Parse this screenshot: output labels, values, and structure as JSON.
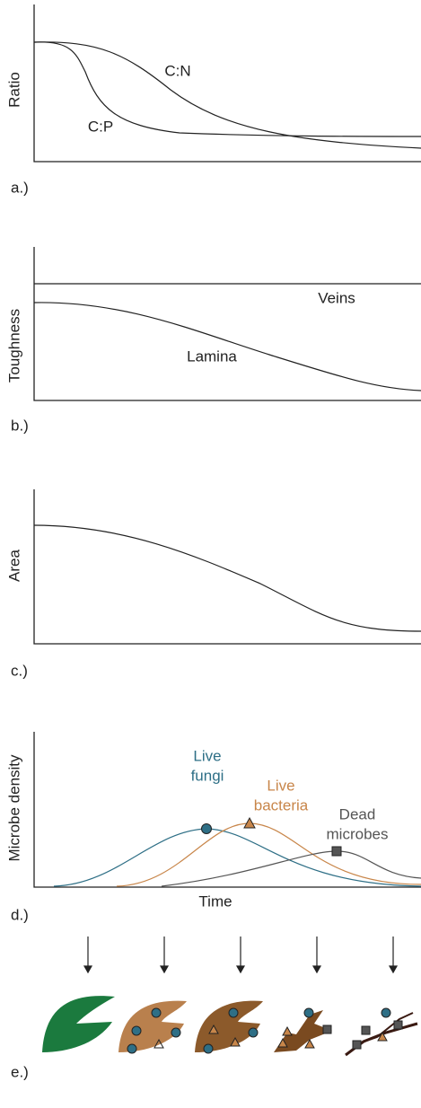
{
  "panels": [
    {
      "label": "a.)",
      "y_label": "Ratio",
      "curve_labels": [
        "C:N",
        "C:P"
      ]
    },
    {
      "label": "b.)",
      "y_label": "Toughness",
      "curve_labels": [
        "Veins",
        "Lamina"
      ]
    },
    {
      "label": "c.)",
      "y_label": "Area"
    },
    {
      "label": "d.)",
      "y_label": "Microbe density",
      "x_label": "Time",
      "curve_labels": [
        [
          "Live",
          "fungi"
        ],
        [
          "Live",
          "bacteria"
        ],
        [
          "Dead",
          "microbes"
        ]
      ]
    },
    {
      "label": "e.)"
    }
  ]
}
